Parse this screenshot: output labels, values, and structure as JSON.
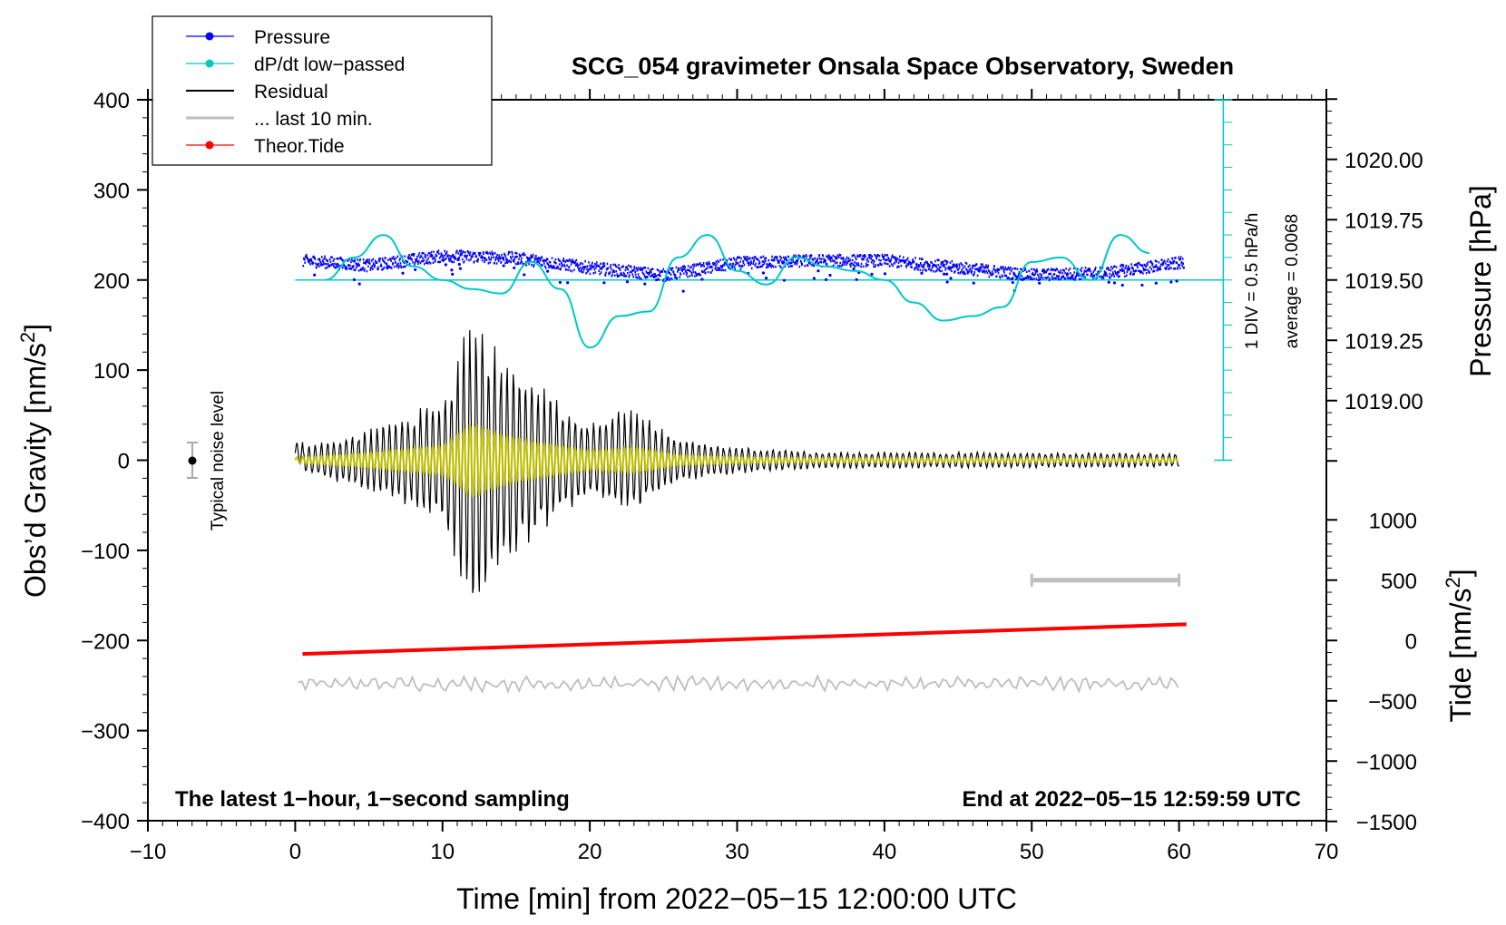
{
  "chart_data": {
    "type": "line",
    "title": "SCG_054 gravimeter Onsala Space Observatory, Sweden",
    "xlabel": "Time [min] from 2022−05−15 12:00:00 UTC",
    "ylabel_main": "Obs’d Gravity [nm/s",
    "ylabel_main_sup": "2",
    "ylabel_main_close": "]",
    "ylabel_pressure": "Pressure [hPa]",
    "ylabel_tide": "Tide [nm/s",
    "ylabel_tide_sup": "2",
    "ylabel_tide_close": "]",
    "xlim": [
      -10,
      70
    ],
    "ylim": [
      -400,
      400
    ],
    "x_ticks": [
      "−10",
      "0",
      "10",
      "20",
      "30",
      "40",
      "50",
      "60",
      "70"
    ],
    "y_ticks": [
      "400",
      "300",
      "200",
      "100",
      "0",
      "−100",
      "−200",
      "−300",
      "−400"
    ],
    "pressure_range": [
      1018.75,
      1020.25
    ],
    "pressure_ticks": [
      "1020.00",
      "1019.75",
      "1019.50",
      "1019.25",
      "1019.00"
    ],
    "tide_range": [
      -1500,
      1500
    ],
    "tide_ticks": [
      "1000",
      "500",
      "0",
      "−500",
      "−1000",
      "−1500"
    ],
    "legend": [
      {
        "label": "Pressure",
        "color": "#0000ff",
        "marker": true
      },
      {
        "label": "dP/dt low−passed",
        "color": "#00c8c8",
        "marker": true
      },
      {
        "label": "Residual",
        "color": "#000000",
        "marker": false
      },
      {
        "label": "... last 10 min.",
        "color": "#bebebe",
        "marker": false
      },
      {
        "label": "Theor.Tide",
        "color": "#ff0000",
        "marker": true
      }
    ],
    "noise_level_label": "Typical noise level",
    "dpdt_scale_label": "1 DIV = 0.5 hPa/h",
    "dpdt_average_label": "average = 0.0068",
    "note_left": "The latest 1−hour, 1−second sampling",
    "note_right": "End at 2022−05−15 12:59:59 UTC",
    "series": [
      {
        "name": "Pressure",
        "unit": "hPa",
        "x": [
          0.5,
          5,
          10,
          15,
          20,
          25,
          30,
          35,
          40,
          45,
          50,
          55,
          60
        ],
        "values": [
          1019.58,
          1019.56,
          1019.6,
          1019.59,
          1019.55,
          1019.52,
          1019.57,
          1019.58,
          1019.58,
          1019.55,
          1019.52,
          1019.53,
          1019.57
        ]
      },
      {
        "name": "dP/dt low-passed",
        "unit": "nm/s2 (plot scale)",
        "x": [
          2,
          4,
          6,
          8,
          10,
          12,
          14,
          16,
          18,
          20,
          22,
          24,
          26,
          28,
          30,
          32,
          34,
          36,
          38,
          40,
          42,
          44,
          46,
          48,
          50,
          52,
          54,
          56,
          58
        ],
        "values": [
          200,
          225,
          250,
          215,
          200,
          190,
          185,
          220,
          190,
          125,
          160,
          165,
          225,
          250,
          210,
          195,
          225,
          215,
          210,
          200,
          175,
          155,
          160,
          170,
          220,
          225,
          200,
          250,
          230
        ]
      },
      {
        "name": "Residual",
        "unit": "nm/s2",
        "x_range": [
          0,
          60
        ],
        "envelope": [
          [
            0,
            12
          ],
          [
            5,
            35
          ],
          [
            10,
            70
          ],
          [
            12,
            170
          ],
          [
            14,
            120
          ],
          [
            16,
            90
          ],
          [
            20,
            45
          ],
          [
            23,
            60
          ],
          [
            26,
            25
          ],
          [
            30,
            15
          ],
          [
            35,
            10
          ],
          [
            60,
            8
          ]
        ]
      },
      {
        "name": "... last 10 min.",
        "unit": "nm/s2",
        "x_range": [
          0,
          60
        ],
        "values_baseline": -248,
        "marker_interval": [
          50,
          60
        ]
      },
      {
        "name": "Theor.Tide",
        "unit": "nm/s2",
        "x": [
          0.5,
          60.5
        ],
        "values": [
          -215,
          -182
        ]
      }
    ]
  }
}
